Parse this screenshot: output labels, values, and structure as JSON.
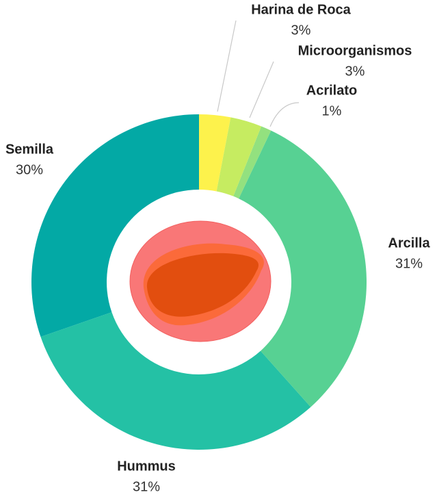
{
  "chart_data": {
    "type": "donut",
    "categories": [
      "Harina de Roca",
      "Microorganismos",
      "Acrilato",
      "Arcilla",
      "Hummus",
      "Semilla"
    ],
    "values": [
      3,
      3,
      1,
      31,
      31,
      30
    ],
    "value_labels": [
      "3%",
      "3%",
      "1%",
      "31%",
      "31%",
      "30%"
    ],
    "colors": [
      "#fdf24c",
      "#c6ec61",
      "#93e17f",
      "#57d193",
      "#24c1a5",
      "#03a9a5"
    ]
  }
}
